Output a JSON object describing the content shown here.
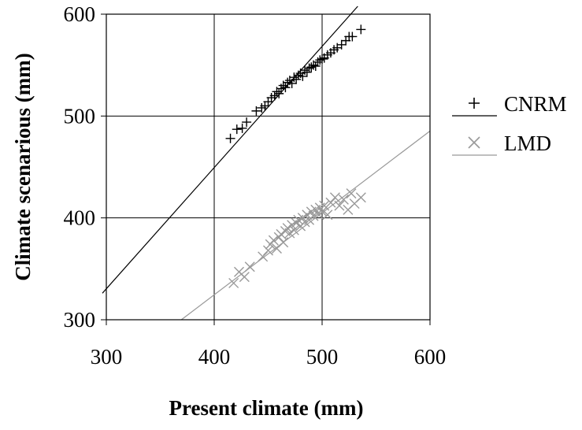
{
  "chart_data": {
    "type": "scatter",
    "xlabel": "Present climate (mm)",
    "ylabel": "Climate scenarious (mm)",
    "xlim": [
      300,
      600
    ],
    "ylim": [
      300,
      600
    ],
    "xticks": [
      "300",
      "400",
      "500",
      "600"
    ],
    "yticks": [
      "300",
      "400",
      "500",
      "600"
    ],
    "grid": true,
    "legend_position": "right",
    "series": [
      {
        "name": "CNRM",
        "marker": "plus",
        "color": "#000000",
        "trendline": {
          "slope": 1.19,
          "intercept": -26.6
        },
        "points": [
          [
            415,
            478
          ],
          [
            421,
            487
          ],
          [
            426,
            488
          ],
          [
            430,
            494
          ],
          [
            439,
            505
          ],
          [
            444,
            508
          ],
          [
            447,
            510
          ],
          [
            450,
            514
          ],
          [
            453,
            518
          ],
          [
            456,
            520
          ],
          [
            458,
            524
          ],
          [
            460,
            522
          ],
          [
            462,
            527
          ],
          [
            464,
            530
          ],
          [
            466,
            528
          ],
          [
            468,
            533
          ],
          [
            470,
            535
          ],
          [
            472,
            532
          ],
          [
            474,
            538
          ],
          [
            476,
            536
          ],
          [
            478,
            540
          ],
          [
            480,
            542
          ],
          [
            482,
            539
          ],
          [
            484,
            545
          ],
          [
            486,
            543
          ],
          [
            488,
            547
          ],
          [
            490,
            548
          ],
          [
            492,
            550
          ],
          [
            494,
            549
          ],
          [
            496,
            553
          ],
          [
            498,
            555
          ],
          [
            500,
            556
          ],
          [
            502,
            557
          ],
          [
            505,
            560
          ],
          [
            508,
            562
          ],
          [
            511,
            565
          ],
          [
            514,
            567
          ],
          [
            518,
            570
          ],
          [
            522,
            574
          ],
          [
            525,
            578
          ],
          [
            528,
            578
          ],
          [
            536,
            585
          ]
        ]
      },
      {
        "name": "LMD",
        "marker": "x",
        "color": "#999999",
        "trendline": {
          "slope": 0.804,
          "intercept": 2.9
        },
        "points": [
          [
            418,
            336
          ],
          [
            423,
            347
          ],
          [
            428,
            342
          ],
          [
            433,
            352
          ],
          [
            445,
            362
          ],
          [
            450,
            368
          ],
          [
            452,
            374
          ],
          [
            455,
            378
          ],
          [
            458,
            370
          ],
          [
            460,
            381
          ],
          [
            462,
            384
          ],
          [
            464,
            376
          ],
          [
            466,
            387
          ],
          [
            468,
            390
          ],
          [
            470,
            385
          ],
          [
            472,
            393
          ],
          [
            474,
            388
          ],
          [
            476,
            395
          ],
          [
            478,
            398
          ],
          [
            480,
            392
          ],
          [
            482,
            400
          ],
          [
            484,
            396
          ],
          [
            486,
            403
          ],
          [
            488,
            398
          ],
          [
            490,
            406
          ],
          [
            492,
            402
          ],
          [
            494,
            408
          ],
          [
            496,
            404
          ],
          [
            498,
            410
          ],
          [
            500,
            406
          ],
          [
            502,
            412
          ],
          [
            505,
            403
          ],
          [
            508,
            415
          ],
          [
            512,
            420
          ],
          [
            516,
            412
          ],
          [
            520,
            418
          ],
          [
            524,
            408
          ],
          [
            527,
            424
          ],
          [
            530,
            414
          ],
          [
            536,
            420
          ]
        ]
      }
    ]
  }
}
